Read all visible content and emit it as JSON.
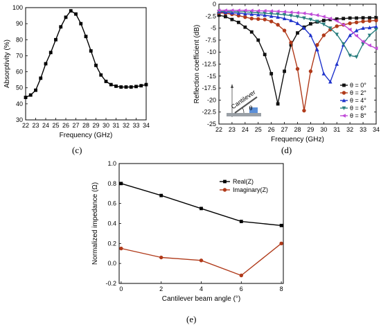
{
  "captions": {
    "c": "(c)",
    "d": "(d)",
    "e": "(e)"
  },
  "chart_data": [
    {
      "panel": "(c)",
      "type": "line",
      "xlabel": "Frequency (GHz)",
      "ylabel": "Absorptivity (%)",
      "xlim": [
        22,
        34
      ],
      "ylim": [
        30,
        100
      ],
      "xticks": [
        22,
        23,
        24,
        25,
        26,
        27,
        28,
        29,
        30,
        31,
        32,
        33,
        34
      ],
      "yticks": [
        30,
        40,
        50,
        60,
        70,
        80,
        90,
        100
      ],
      "grid": false,
      "series": [
        {
          "color": "#000000",
          "marker": "square",
          "x": [
            22,
            22.5,
            23,
            23.5,
            24,
            24.5,
            25,
            25.5,
            26,
            26.5,
            27,
            27.5,
            28,
            28.5,
            29,
            29.5,
            30,
            30.5,
            31,
            31.5,
            32,
            32.5,
            33,
            33.5,
            34
          ],
          "y": [
            44,
            45.5,
            48.5,
            56,
            65,
            72,
            80,
            88,
            94,
            98,
            96,
            90,
            82,
            73,
            64,
            58,
            54,
            52,
            51,
            50.5,
            50.5,
            50.5,
            50.8,
            51.3,
            52
          ]
        }
      ]
    },
    {
      "panel": "(d)",
      "type": "line",
      "xlabel": "Frequency (GHz)",
      "ylabel": "Reflection coefficient (dB)",
      "xlim": [
        22,
        34
      ],
      "ylim": [
        -25,
        0
      ],
      "xticks": [
        22,
        23,
        24,
        25,
        26,
        27,
        28,
        29,
        30,
        31,
        32,
        33,
        34
      ],
      "yticks": [
        0,
        -2.5,
        -5,
        -7.5,
        -10,
        -12.5,
        -15,
        -17.5,
        -20,
        -22.5,
        -25
      ],
      "legend_position": "right",
      "inset_label": "θ",
      "inset_text": "Cantilever",
      "series": [
        {
          "name": "θ = 0°",
          "color": "#111111",
          "marker": "square",
          "x": [
            22,
            22.5,
            23,
            23.5,
            24,
            24.5,
            25,
            25.5,
            26,
            26.5,
            27,
            27.5,
            28,
            28.5,
            29,
            29.5,
            30,
            30.5,
            31,
            31.5,
            32,
            32.5,
            33,
            33.5,
            34
          ],
          "y": [
            -2.3,
            -2.6,
            -3.2,
            -3.8,
            -4.8,
            -5.8,
            -7.5,
            -10.5,
            -14.5,
            -20.8,
            -14,
            -8.5,
            -6,
            -4.8,
            -4.1,
            -3.7,
            -3.4,
            -3.2,
            -3.1,
            -3,
            -2.9,
            -2.9,
            -2.85,
            -2.85,
            -2.85
          ]
        },
        {
          "name": "θ = 2°",
          "color": "#b03a1a",
          "marker": "circle",
          "x": [
            22,
            22.5,
            23,
            23.5,
            24,
            24.5,
            25,
            25.5,
            26,
            26.5,
            27,
            27.5,
            28,
            28.5,
            29,
            29.5,
            30,
            30.5,
            31,
            31.5,
            32,
            32.5,
            33,
            33.5,
            34
          ],
          "y": [
            -1.8,
            -1.9,
            -2.1,
            -2.4,
            -2.7,
            -3,
            -3.1,
            -3.2,
            -3.6,
            -4.3,
            -5.5,
            -8,
            -13.5,
            -22.2,
            -14,
            -8.5,
            -6.5,
            -5.3,
            -4.6,
            -4.3,
            -4,
            -3.8,
            -3.6,
            -3.5,
            -3.4
          ]
        },
        {
          "name": "θ = 4°",
          "color": "#1f33cc",
          "marker": "triangle-up",
          "x": [
            22,
            22.5,
            23,
            23.5,
            24,
            24.5,
            25,
            25.5,
            26,
            26.5,
            27,
            27.5,
            28,
            28.5,
            29,
            29.5,
            30,
            30.5,
            31,
            31.5,
            32,
            32.5,
            33,
            33.5,
            34
          ],
          "y": [
            -1.6,
            -1.7,
            -1.8,
            -1.9,
            -2,
            -2.1,
            -2.2,
            -2.3,
            -2.5,
            -2.7,
            -3,
            -3.4,
            -4,
            -5,
            -6.5,
            -9.5,
            -14.5,
            -16.2,
            -12.5,
            -8.5,
            -6.5,
            -5.5,
            -5,
            -4.9,
            -4.7
          ]
        },
        {
          "name": "θ = 6°",
          "color": "#2a7f7f",
          "marker": "triangle-down",
          "x": [
            22,
            22.5,
            23,
            23.5,
            24,
            24.5,
            25,
            25.5,
            26,
            26.5,
            27,
            27.5,
            28,
            28.5,
            29,
            29.5,
            30,
            30.5,
            31,
            31.5,
            32,
            32.5,
            33,
            33.5,
            34
          ],
          "y": [
            -1.5,
            -1.5,
            -1.5,
            -1.6,
            -1.6,
            -1.7,
            -1.8,
            -1.9,
            -2,
            -2.1,
            -2.2,
            -2.4,
            -2.6,
            -2.9,
            -3.2,
            -3.6,
            -4.2,
            -5,
            -6.3,
            -8.3,
            -10.7,
            -11,
            -8.3,
            -6.5,
            -5.3
          ]
        },
        {
          "name": "θ = 8°",
          "color": "#c04ad8",
          "marker": "triangle-left",
          "x": [
            22,
            22.5,
            23,
            23.5,
            24,
            24.5,
            25,
            25.5,
            26,
            26.5,
            27,
            27.5,
            28,
            28.5,
            29,
            29.5,
            30,
            30.5,
            31,
            31.5,
            32,
            32.5,
            33,
            33.5,
            34
          ],
          "y": [
            -1.3,
            -1.3,
            -1.3,
            -1.3,
            -1.3,
            -1.35,
            -1.4,
            -1.4,
            -1.45,
            -1.5,
            -1.6,
            -1.7,
            -1.8,
            -1.9,
            -2.1,
            -2.3,
            -2.6,
            -3,
            -3.5,
            -4.3,
            -5.3,
            -6.6,
            -7.8,
            -8.6,
            -9.2
          ]
        }
      ]
    },
    {
      "panel": "(e)",
      "type": "line",
      "xlabel": "Cantilever beam angle (°)",
      "ylabel": "Normalized impedance (Ω)",
      "xlim": [
        -0.1,
        8.1
      ],
      "ylim": [
        -0.2,
        1.0
      ],
      "xticks": [
        0,
        2,
        4,
        6,
        8
      ],
      "yticks": [
        -0.2,
        0.0,
        0.2,
        0.4,
        0.6,
        0.8,
        1.0
      ],
      "legend_position": "top-right",
      "series": [
        {
          "name": "Real(Z)",
          "color": "#000000",
          "marker": "square",
          "x": [
            0,
            2,
            4,
            6,
            8
          ],
          "y": [
            0.8,
            0.68,
            0.55,
            0.42,
            0.38
          ]
        },
        {
          "name": "Imaginary(Z)",
          "color": "#b03a1a",
          "marker": "circle",
          "x": [
            0,
            2,
            4,
            6,
            8
          ],
          "y": [
            0.15,
            0.06,
            0.03,
            -0.12,
            0.2
          ]
        }
      ]
    }
  ]
}
